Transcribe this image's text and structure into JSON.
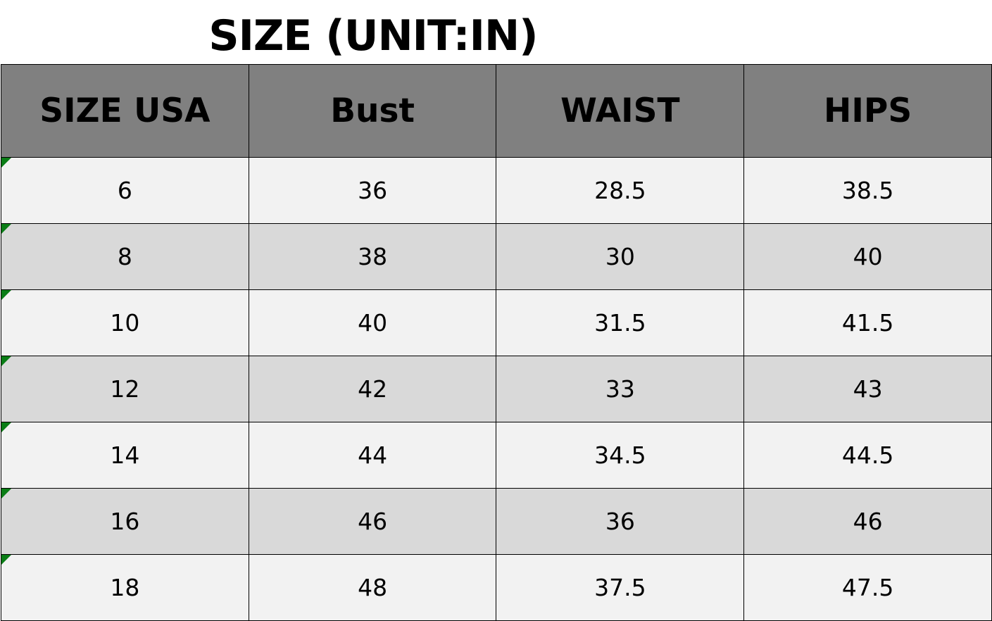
{
  "title": "SIZE (UNIT:IN)",
  "table": {
    "headers": [
      "SIZE USA",
      "Bust",
      "WAIST",
      "HIPS"
    ],
    "rows": [
      [
        "6",
        "36",
        "28.5",
        "38.5"
      ],
      [
        "8",
        "38",
        "30",
        "40"
      ],
      [
        "10",
        "40",
        "31.5",
        "41.5"
      ],
      [
        "12",
        "42",
        "33",
        "43"
      ],
      [
        "14",
        "44",
        "34.5",
        "44.5"
      ],
      [
        "16",
        "46",
        "36",
        "46"
      ],
      [
        "18",
        "48",
        "37.5",
        "47.5"
      ]
    ]
  },
  "colors": {
    "header_bg": "#808080",
    "row_light": "#f2f2f2",
    "row_dark": "#d9d9d9",
    "cell_flag": "#0a7d16"
  }
}
